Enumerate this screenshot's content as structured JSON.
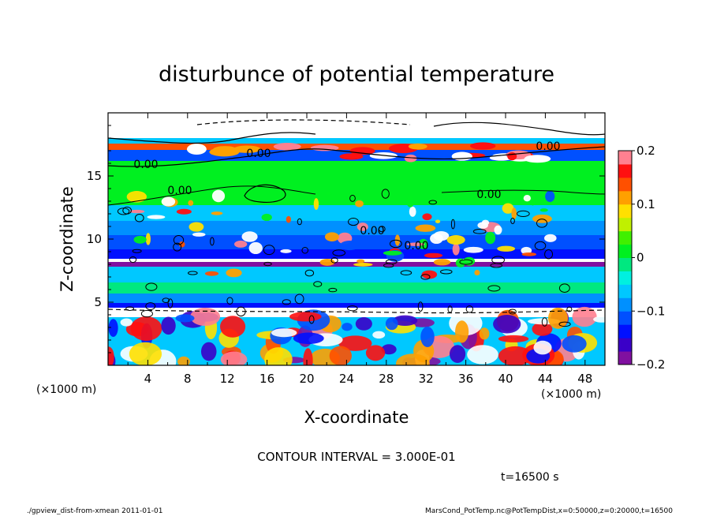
{
  "chart_data": {
    "type": "heatmap",
    "title": "disturbunce of potential temperature",
    "xlabel": "X-coordinate",
    "ylabel": "Z-coordinate",
    "x_unit": "(×1000 m)",
    "y_unit": "(×1000 m)",
    "xlim": [
      0,
      50
    ],
    "ylim": [
      0,
      20
    ],
    "x_ticks": [
      4,
      8,
      12,
      16,
      20,
      24,
      28,
      32,
      36,
      40,
      44,
      48
    ],
    "y_ticks": [
      5,
      10,
      15
    ],
    "colorbar": {
      "range": [
        -0.2,
        0.2
      ],
      "ticks": [
        "0.2",
        "0.1",
        "0",
        "-0.1",
        "-0.2"
      ],
      "tick_values": [
        0.2,
        0.1,
        0,
        -0.1,
        -0.2
      ],
      "colors": [
        "#8010a0",
        "#3a00c8",
        "#0010ff",
        "#0050ff",
        "#0090ff",
        "#00c8ff",
        "#00f0e0",
        "#00e880",
        "#00f020",
        "#40f000",
        "#c0f000",
        "#ffe000",
        "#ffa000",
        "#ff5000",
        "#ff1010",
        "#ff8090"
      ]
    },
    "contour_labels": [
      "0.00",
      "0.00",
      "0.00",
      "0.00",
      "0.00",
      "0.00",
      "0.00"
    ],
    "contour_interval": "CONTOUR INTERVAL = 3.000E-01",
    "time": "t=16500 s",
    "footer_left": "./gpview_dist-from-xmean  2011-01-01",
    "footer_right": "MarsCond_PotTemp.nc@PotTempDist,x=0:50000,z=0:20000,t=16500"
  }
}
